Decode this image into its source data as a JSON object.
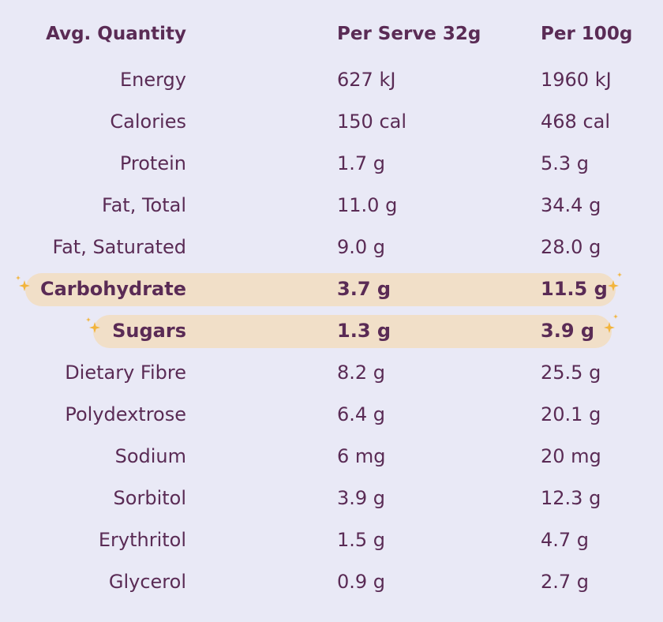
{
  "header": {
    "name": "Avg. Quantity",
    "per_serve": "Per Serve 32g",
    "per_100g": "Per 100g"
  },
  "rows": [
    {
      "name": "Energy",
      "per_serve": "627 kJ",
      "per_100g": "1960 kJ",
      "highlight": false
    },
    {
      "name": "Calories",
      "per_serve": "150 cal",
      "per_100g": "468 cal",
      "highlight": false
    },
    {
      "name": "Protein",
      "per_serve": "1.7 g",
      "per_100g": "5.3 g",
      "highlight": false
    },
    {
      "name": "Fat, Total",
      "per_serve": "11.0 g",
      "per_100g": "34.4 g",
      "highlight": false
    },
    {
      "name": "Fat, Saturated",
      "per_serve": "9.0 g",
      "per_100g": "28.0 g",
      "highlight": false
    },
    {
      "name": "Carbohydrate",
      "per_serve": "3.7 g",
      "per_100g": "11.5 g",
      "highlight": true
    },
    {
      "name": "Sugars",
      "per_serve": "1.3 g",
      "per_100g": "3.9 g",
      "highlight": true
    },
    {
      "name": "Dietary Fibre",
      "per_serve": "8.2 g",
      "per_100g": "25.5 g",
      "highlight": false
    },
    {
      "name": "Polydextrose",
      "per_serve": "6.4 g",
      "per_100g": "20.1 g",
      "highlight": false
    },
    {
      "name": "Sodium",
      "per_serve": "6 mg",
      "per_100g": "20 mg",
      "highlight": false
    },
    {
      "name": "Sorbitol",
      "per_serve": "3.9 g",
      "per_100g": "12.3 g",
      "highlight": false
    },
    {
      "name": "Erythritol",
      "per_serve": "1.5 g",
      "per_100g": "4.7 g",
      "highlight": false
    },
    {
      "name": "Glycerol",
      "per_serve": "0.9 g",
      "per_100g": "2.7 g",
      "highlight": false
    }
  ],
  "colors": {
    "background": "#e9e9f6",
    "text": "#5a2b55",
    "highlight_pill": "#f1dfc8",
    "sparkle": "#f2b43c"
  },
  "icons": {
    "sparkle": "sparkle-icon"
  }
}
